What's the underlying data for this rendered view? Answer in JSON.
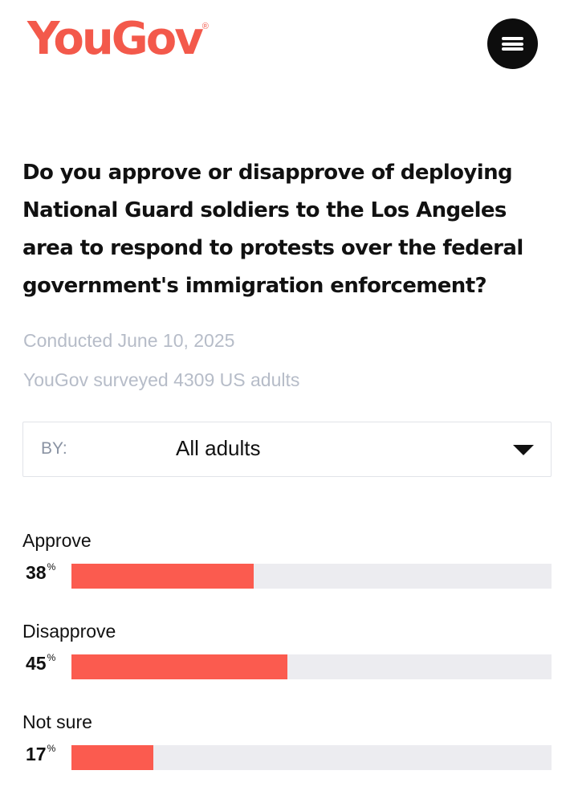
{
  "brand": {
    "name": "YouGov",
    "registered_mark": "®",
    "color": "#f3594b"
  },
  "header": {
    "menu_icon": "hamburger-menu-icon"
  },
  "survey": {
    "question": "Do you approve or disapprove of deploying National Guard soldiers to the Los Angeles area to respond to protests over the federal government's immigration enforcement?",
    "conducted": "Conducted June 10, 2025",
    "sample": "YouGov surveyed 4309 US adults"
  },
  "filter": {
    "label": "BY:",
    "selected": "All adults",
    "icon": "caret-down-icon"
  },
  "chart_data": {
    "type": "bar",
    "orientation": "horizontal",
    "title": "Do you approve or disapprove of deploying National Guard soldiers to the Los Angeles area to respond to protests over the federal government's immigration enforcement?",
    "categories": [
      "Approve",
      "Disapprove",
      "Not sure"
    ],
    "values": [
      38,
      45,
      17
    ],
    "unit": "%",
    "xlim": [
      0,
      100
    ],
    "bar_color": "#fb5b4f",
    "track_color": "#ececf0"
  }
}
